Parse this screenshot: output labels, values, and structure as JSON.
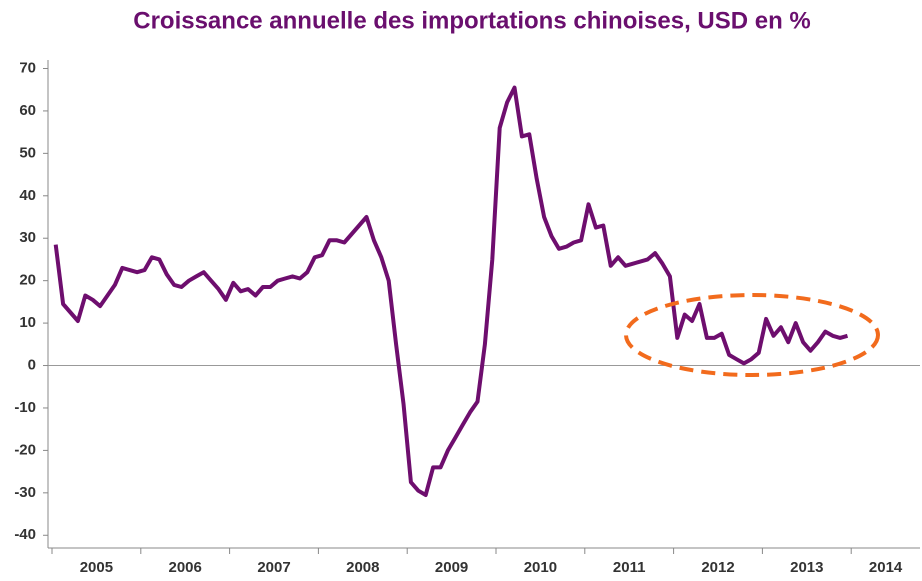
{
  "chart_data": {
    "type": "line",
    "title": "Croissance annuelle des importations chinoises, USD en %",
    "categories": [
      "2005",
      null,
      null,
      null,
      null,
      null,
      null,
      null,
      null,
      null,
      null,
      null,
      "2006",
      null,
      null,
      null,
      null,
      null,
      null,
      null,
      null,
      null,
      null,
      null,
      "2007",
      null,
      null,
      null,
      null,
      null,
      null,
      null,
      null,
      null,
      null,
      null,
      "2008",
      null,
      null,
      null,
      null,
      null,
      null,
      null,
      null,
      null,
      null,
      null,
      "2009",
      null,
      null,
      null,
      null,
      null,
      null,
      null,
      null,
      null,
      null,
      null,
      "2010",
      null,
      null,
      null,
      null,
      null,
      null,
      null,
      null,
      null,
      null,
      null,
      "2011",
      null,
      null,
      null,
      null,
      null,
      null,
      null,
      null,
      null,
      null,
      null,
      "2012",
      null,
      null,
      null,
      null,
      null,
      null,
      null,
      null,
      null,
      null,
      null,
      "2013",
      null,
      null,
      null,
      null,
      null,
      null,
      null,
      null,
      null,
      null,
      null,
      "2014",
      null,
      null,
      null,
      null,
      null,
      null,
      null,
      null,
      null,
      null,
      null
    ],
    "series": [
      {
        "color": "#6e0e6e",
        "values": [
          28.5,
          14.5,
          12.5,
          10.5,
          16.5,
          15.5,
          14,
          16.5,
          19,
          23,
          22.5,
          22,
          22.5,
          25.5,
          25,
          21.5,
          19,
          18.5,
          20,
          21,
          22,
          20,
          18,
          15.5,
          19.5,
          17.5,
          18,
          16.5,
          18.5,
          18.5,
          20,
          20.5,
          21,
          20.5,
          22,
          25.5,
          26,
          29.5,
          29.5,
          29,
          31,
          33,
          35,
          29.5,
          25.5,
          20,
          5,
          -9,
          -27.5,
          -29.5,
          -30.5,
          -24,
          -24,
          -20,
          -17,
          -14,
          -11,
          -8.5,
          5,
          25,
          56,
          62,
          65.5,
          54,
          54.5,
          44,
          35,
          30.5,
          27.5,
          28,
          29,
          29.5,
          38,
          32.5,
          33,
          23.5,
          25.5,
          23.5,
          24,
          24.5,
          25,
          26.5,
          24,
          21,
          6.5,
          12,
          10.5,
          14.5,
          6.5,
          6.5,
          7.5,
          2.5,
          1.5,
          0.5,
          1.5,
          3,
          11,
          7,
          9,
          5.5,
          10,
          5.5,
          3.5,
          5.5,
          8,
          7,
          6.5,
          7,
          null,
          null,
          null,
          null,
          null,
          null,
          null,
          null,
          null,
          null,
          null,
          null
        ]
      }
    ],
    "ylim": [
      -43,
      72
    ],
    "yticks": [
      -40,
      -30,
      -20,
      -10,
      0,
      10,
      20,
      30,
      40,
      50,
      60,
      70
    ]
  }
}
